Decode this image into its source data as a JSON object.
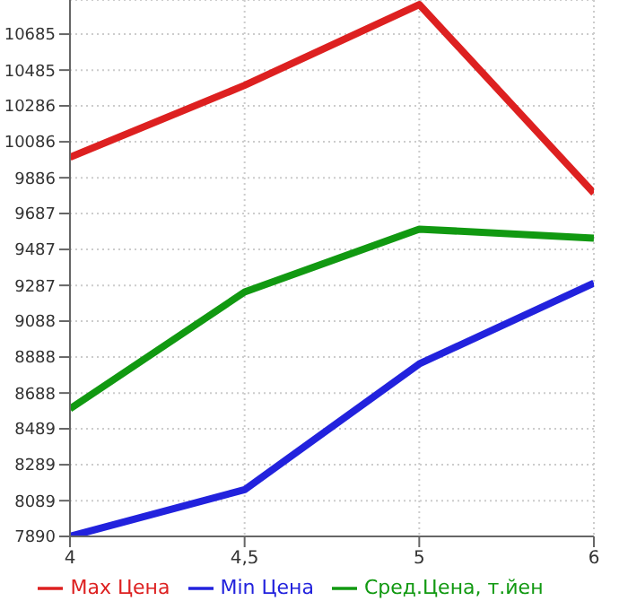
{
  "chart_data": {
    "type": "line",
    "categories": [
      "4",
      "4,5",
      "5",
      "6"
    ],
    "series": [
      {
        "name": "Max Цена",
        "color": "#dd2020",
        "values": [
          10000,
          10400,
          10850,
          9800
        ]
      },
      {
        "name": "Min Цена",
        "color": "#2222dd",
        "values": [
          7890,
          8150,
          8850,
          9300
        ]
      },
      {
        "name": "Сред.Цена, т.йен",
        "color": "#119911",
        "values": [
          8600,
          9250,
          9600,
          9550
        ]
      }
    ],
    "ylim": [
      7890,
      10875
    ],
    "yticks": [
      7890,
      8089,
      8289,
      8489,
      8688,
      8888,
      9088,
      9287,
      9487,
      9687,
      9886,
      10086,
      10286,
      10485,
      10685
    ],
    "grid": true,
    "legend": "bottom",
    "marker": "none",
    "line_style": "solid"
  }
}
